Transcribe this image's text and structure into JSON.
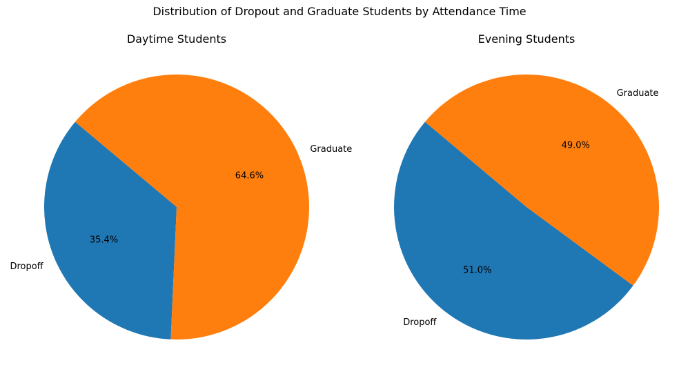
{
  "figure": {
    "suptitle": "Distribution of Dropout and Graduate Students by Attendance Time"
  },
  "chart_data": [
    {
      "type": "pie",
      "title": "Daytime Students",
      "labels": [
        "Dropoff",
        "Graduate"
      ],
      "values": [
        35.4,
        64.6
      ],
      "autopct": [
        "35.4%",
        "64.6%"
      ],
      "colors": [
        "#1f77b4",
        "#ff7f0e"
      ],
      "start_angle_deg": 140
    },
    {
      "type": "pie",
      "title": "Evening Students",
      "labels": [
        "Dropoff",
        "Graduate"
      ],
      "values": [
        51.0,
        49.0
      ],
      "autopct": [
        "51.0%",
        "49.0%"
      ],
      "colors": [
        "#1f77b4",
        "#ff7f0e"
      ],
      "start_angle_deg": 140
    }
  ]
}
